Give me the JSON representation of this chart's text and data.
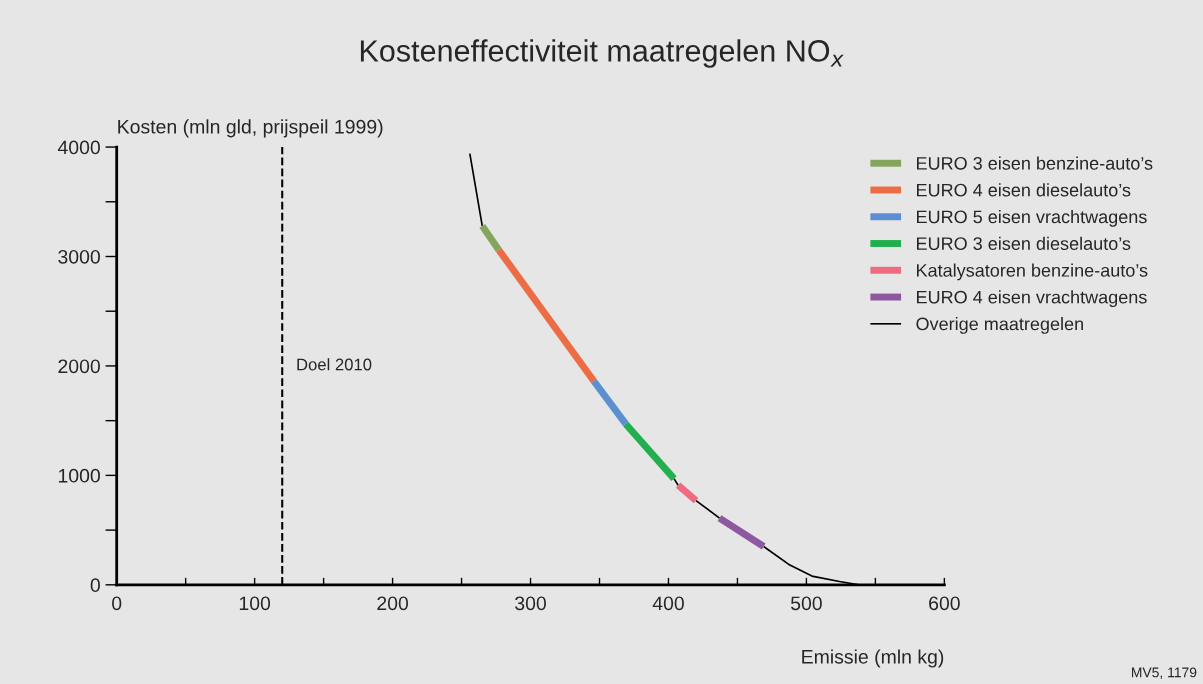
{
  "chart_data": {
    "type": "line",
    "title": "Kosteneffectiviteit maatregelen NO$_{x}$",
    "xlabel": "Emissie (mln kg)",
    "ylabel": "Kosten (mln gld, prijspeil 1999)",
    "xlim": [
      0,
      600
    ],
    "ylim": [
      0,
      4000
    ],
    "xticks": [
      0,
      {
        "value": 50,
        "label": null
      },
      100,
      {
        "value": 150,
        "label": null
      },
      200,
      {
        "value": 250,
        "label": null
      },
      300,
      {
        "value": 350,
        "label": null
      },
      400,
      {
        "value": 450,
        "label": null
      },
      500,
      {
        "value": 550,
        "label": null
      },
      600
    ],
    "yticks": [
      0,
      {
        "value": 500,
        "label": null
      },
      1000,
      {
        "value": 1500,
        "label": null
      },
      2000,
      {
        "value": 2500,
        "label": null
      },
      3000,
      {
        "value": 3500,
        "label": null
      },
      4000
    ],
    "grid": false,
    "legend": "right",
    "line_style": "solid",
    "series": [
      {
        "name": "EURO 3 eisen benzine-auto’s",
        "color": "#84a55c",
        "x": [
          265,
          277
        ],
        "values": [
          3280,
          3060
        ]
      },
      {
        "name": "EURO 4 eisen dieselauto’s",
        "color": "#ec6d45",
        "x": [
          277,
          346
        ],
        "values": [
          3060,
          1860
        ]
      },
      {
        "name": "EURO 5 eisen vrachtwagens",
        "color": "#5b8fd0",
        "x": [
          346,
          369
        ],
        "values": [
          1860,
          1470
        ]
      },
      {
        "name": "EURO 3 eisen dieselauto’s",
        "color": "#22b04e",
        "x": [
          369,
          404
        ],
        "values": [
          1470,
          970
        ]
      },
      {
        "name": "Katalysatoren benzine-auto’s",
        "color": "#ee6b80",
        "x": [
          407,
          420
        ],
        "values": [
          910,
          770
        ]
      },
      {
        "name": "EURO 4 eisen vrachtwagens",
        "color": "#8e58a0",
        "x": [
          437,
          469
        ],
        "values": [
          610,
          350
        ]
      },
      {
        "name": "Overige maatregelen",
        "color": "#000000",
        "x": [
          256,
          265,
          266,
          404,
          407,
          408,
          420,
          437,
          438,
          469,
          488,
          504,
          524,
          538,
          553
        ],
        "values": [
          3940,
          3280,
          null,
          970,
          910,
          null,
          770,
          610,
          null,
          350,
          180,
          80,
          30,
          0,
          0
        ]
      }
    ],
    "ref_lines": [
      {
        "axis": "x",
        "value": 120,
        "label": "Doel 2010",
        "color": "#000000",
        "line_style": "dashed"
      }
    ],
    "annotations": [
      "MV5, 1179"
    ]
  }
}
